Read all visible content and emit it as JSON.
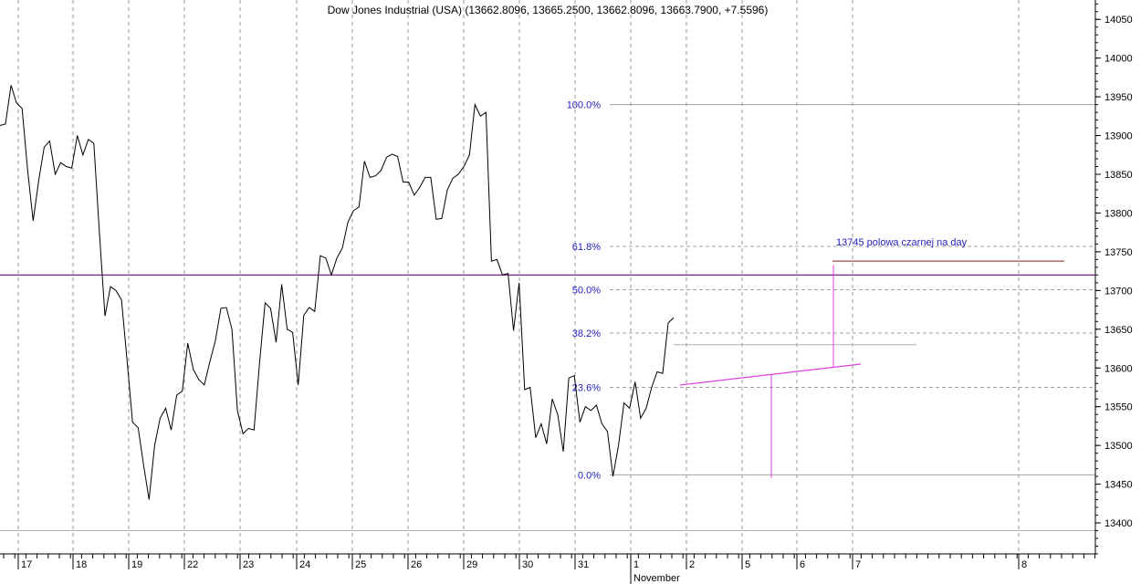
{
  "colors": {
    "price": "#000000",
    "fib_label": "#1f1fbf",
    "fib_line": "#a0a0a0",
    "horizontal_line": "#7a1f8f",
    "trend_line": "#e23ee0",
    "target_line": "#8b1a1a"
  },
  "chart_data": {
    "type": "line",
    "title": "Dow Jones Industrial (USA) (13662.8096, 13665.2500, 13662.8096, 13663.7900, +7.5596)",
    "ylim": [
      13360,
      14075
    ],
    "y_ticks": [
      13400,
      13450,
      13500,
      13550,
      13600,
      13650,
      13700,
      13750,
      13800,
      13850,
      13900,
      13950,
      14000,
      14050
    ],
    "x_ticks": [
      "17",
      "18",
      "19",
      "22",
      "23",
      "24",
      "25",
      "26",
      "29",
      "30",
      "31",
      "1",
      "2",
      "5",
      "6",
      "7",
      "8"
    ],
    "x_group_label": "November",
    "grid": true,
    "series": [
      {
        "values": [
          13913,
          13915,
          13965,
          13942,
          13935,
          13855,
          13790,
          13842,
          13885,
          13893,
          13850,
          13865,
          13860,
          13858,
          13900,
          13875,
          13895,
          13890,
          13775,
          13667,
          13705,
          13700,
          13688,
          13610,
          13530,
          13523,
          13475,
          13430,
          13500,
          13535,
          13548,
          13520,
          13565,
          13570,
          13632,
          13598,
          13585,
          13578,
          13608,
          13635,
          13677,
          13678,
          13650,
          13545,
          13515,
          13522,
          13520,
          13606,
          13684,
          13677,
          13633,
          13708,
          13650,
          13646,
          13578,
          13668,
          13678,
          13673,
          13745,
          13742,
          13720,
          13742,
          13755,
          13788,
          13803,
          13808,
          13867,
          13846,
          13848,
          13855,
          13872,
          13876,
          13873,
          13840,
          13840,
          13823,
          13833,
          13846,
          13846,
          13792,
          13793,
          13830,
          13845,
          13850,
          13860,
          13875,
          13940,
          13925,
          13930,
          13738,
          13740,
          13720,
          13722,
          13648,
          13710,
          13572,
          13575,
          13510,
          13528,
          13502,
          13560,
          13540,
          13492,
          13587,
          13590,
          13530,
          13550,
          13545,
          13552,
          13528,
          13518,
          13460,
          13500,
          13555,
          13548,
          13582,
          13535,
          13548,
          13575,
          13595,
          13593,
          13658,
          13665
        ]
      }
    ],
    "overlays": {
      "fibonacci": [
        {
          "label": "100.0%",
          "value": 13940
        },
        {
          "label": "61.8%",
          "value": 13757
        },
        {
          "label": "50.0%",
          "value": 13701
        },
        {
          "label": "38.2%",
          "value": 13645
        },
        {
          "label": "23.6%",
          "value": 13575
        },
        {
          "label": "0.0%",
          "value": 13462
        }
      ],
      "horizontal_level": 13720,
      "lower_grid_level": 13390,
      "target_level": 13738,
      "annotation": "13745 polowa czarnej na day"
    }
  }
}
